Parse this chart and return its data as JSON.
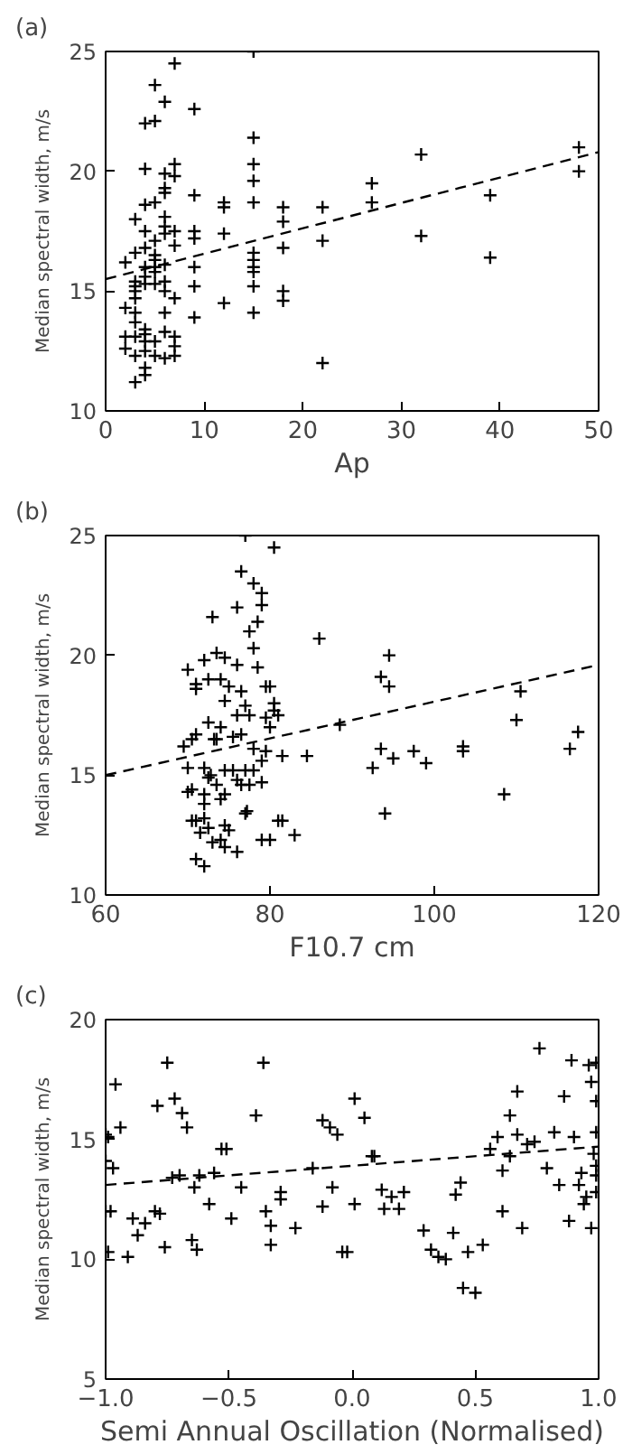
{
  "chart_data": [
    {
      "type": "scatter",
      "title": "(a)",
      "xlabel": "Ap",
      "ylabel": "Median spectral width, m/s",
      "xlim": [
        0,
        50
      ],
      "ylim": [
        10,
        25
      ],
      "xticks": [
        0,
        10,
        20,
        30,
        40,
        50
      ],
      "yticks": [
        10,
        15,
        20,
        25
      ],
      "series": [
        {
          "marker": "cross",
          "color": "#000000",
          "x": [
            2,
            2,
            2,
            2,
            3,
            3,
            3,
            3,
            3,
            3,
            3,
            3,
            3,
            3,
            3,
            4,
            4,
            4,
            4,
            4,
            4,
            4,
            4,
            4,
            4,
            4,
            4,
            4,
            4,
            5,
            5,
            5,
            5,
            5,
            5,
            5,
            5,
            5,
            5,
            5,
            6,
            6,
            6,
            6,
            6,
            6,
            6,
            6,
            6,
            6,
            6,
            6,
            6,
            7,
            7,
            7,
            7,
            7,
            7,
            7,
            7,
            7,
            9,
            9,
            9,
            9,
            9,
            9,
            9,
            12,
            12,
            12,
            12,
            15,
            15,
            15,
            15,
            15,
            15,
            15,
            15,
            15,
            15,
            15,
            18,
            18,
            18,
            18,
            18,
            22,
            22,
            22,
            27,
            27,
            32,
            32,
            39,
            39,
            48,
            48
          ],
          "values": [
            16.2,
            14.3,
            13.1,
            12.6,
            18.0,
            16.6,
            15.4,
            15.0,
            14.7,
            14.1,
            13.7,
            13.1,
            12.3,
            11.2,
            15.2,
            22.0,
            20.1,
            18.6,
            17.5,
            16.8,
            16.0,
            15.6,
            15.3,
            13.4,
            13.2,
            12.9,
            12.5,
            11.8,
            11.5,
            23.6,
            22.1,
            18.7,
            17.1,
            16.5,
            16.3,
            16.0,
            15.8,
            15.3,
            12.9,
            12.3,
            22.9,
            19.9,
            19.3,
            19.1,
            18.1,
            17.7,
            17.4,
            16.1,
            15.4,
            15.0,
            14.1,
            13.3,
            12.2,
            24.5,
            20.3,
            19.8,
            17.5,
            16.9,
            14.7,
            13.1,
            12.7,
            12.3,
            22.6,
            19.0,
            17.5,
            17.2,
            16.0,
            15.2,
            13.9,
            18.7,
            18.5,
            17.4,
            14.5,
            25.0,
            21.4,
            20.3,
            19.6,
            18.7,
            16.6,
            16.3,
            16.0,
            15.8,
            15.2,
            14.1,
            18.5,
            17.9,
            16.8,
            15.0,
            14.6,
            18.5,
            17.1,
            12.0,
            19.5,
            18.7,
            20.7,
            17.3,
            19.0,
            16.4,
            21.0,
            20.0
          ]
        },
        {
          "type": "line",
          "line_style": "dashed",
          "color": "#000000",
          "x": [
            0,
            50
          ],
          "values": [
            15.5,
            20.8
          ]
        }
      ]
    },
    {
      "type": "scatter",
      "title": "(b)",
      "xlabel": "F10.7 cm",
      "ylabel": "Median spectral width, m/s",
      "xlim": [
        60,
        120
      ],
      "ylim": [
        10,
        25
      ],
      "xticks": [
        60,
        80,
        100,
        120
      ],
      "yticks": [
        10,
        15,
        20,
        25
      ],
      "series": [
        {
          "marker": "cross",
          "color": "#000000",
          "x": [
            70,
            71,
            71,
            72,
            73,
            72.5,
            73.5,
            74,
            74.5,
            74.5,
            75,
            76,
            76.5,
            76,
            76.5,
            77,
            78,
            79,
            79,
            78.5,
            77.5,
            78,
            78.5,
            79.5,
            80,
            80.5,
            80.5,
            80.5,
            81,
            79.5,
            80,
            77,
            77.5,
            76,
            76.5,
            75.5,
            74,
            72.5,
            71,
            70.5,
            69.5,
            73.5,
            73.2,
            72,
            70,
            72.5,
            72.8,
            73.5,
            74.5,
            75.5,
            76,
            77,
            78,
            77.5,
            76.5,
            79,
            79,
            79.5,
            78,
            81.5,
            84.5,
            70,
            70.5,
            72,
            72,
            74,
            74.5,
            70.5,
            71,
            72,
            72.5,
            71.5,
            73,
            74,
            74.5,
            74.5,
            75,
            76,
            77,
            77.2,
            79,
            80,
            81,
            81.5,
            83,
            71,
            72,
            86,
            88.5,
            92.5,
            93.5,
            93.5,
            94,
            94.5,
            94.5,
            95,
            97.5,
            99,
            103.5,
            103.5,
            108.5,
            110,
            110.5,
            116.5,
            117.5
          ],
          "values": [
            19.4,
            18.6,
            18.8,
            19.8,
            21.6,
            19.0,
            20.1,
            19.0,
            19.9,
            18.1,
            18.7,
            22.0,
            23.5,
            19.6,
            18.5,
            25.0,
            23.0,
            22.6,
            22.1,
            21.4,
            21.0,
            20.3,
            19.5,
            18.7,
            18.7,
            24.5,
            18.0,
            17.7,
            17.5,
            17.4,
            17.0,
            17.9,
            17.5,
            17.5,
            16.7,
            16.6,
            17.0,
            17.2,
            16.7,
            16.5,
            16.2,
            16.5,
            16.5,
            15.3,
            15.3,
            14.9,
            15.0,
            14.6,
            15.2,
            15.2,
            14.8,
            15.2,
            15.2,
            14.6,
            14.6,
            15.6,
            14.7,
            16.0,
            16.1,
            15.8,
            15.8,
            14.3,
            14.4,
            14.2,
            13.8,
            14.0,
            14.2,
            13.1,
            13.1,
            13.2,
            12.8,
            12.6,
            12.2,
            12.3,
            12.0,
            12.9,
            12.7,
            11.8,
            13.4,
            13.5,
            12.3,
            12.3,
            13.1,
            13.1,
            12.5,
            11.5,
            11.2,
            20.7,
            17.1,
            15.3,
            19.1,
            16.1,
            13.4,
            20.0,
            18.7,
            15.7,
            16.0,
            15.5,
            16.2,
            16.0,
            14.2,
            17.3,
            18.5,
            16.1,
            16.8
          ]
        },
        {
          "type": "line",
          "line_style": "dashed",
          "color": "#000000",
          "x": [
            60,
            120
          ],
          "values": [
            15.0,
            19.6
          ]
        }
      ]
    },
    {
      "type": "scatter",
      "title": "(c)",
      "xlabel": "Semi Annual Oscillation (Normalised)",
      "ylabel": "Median spectral width, m/s",
      "xlim": [
        -1,
        1
      ],
      "ylim": [
        5,
        20
      ],
      "xticks": [
        {
          "value": -1,
          "label": "−1.0"
        },
        {
          "value": -0.5,
          "label": "−0.5"
        },
        {
          "value": 0,
          "label": "0.0"
        },
        {
          "value": 0.5,
          "label": "0.5"
        },
        {
          "value": 1,
          "label": "1.0"
        }
      ],
      "yticks": [
        5,
        10,
        15,
        20
      ],
      "series": [
        {
          "marker": "cross",
          "color": "#000000",
          "x": [
            -1.0,
            -0.99,
            -1.0,
            -0.97,
            -0.96,
            -0.94,
            -1.0,
            -0.98,
            -0.99,
            -0.91,
            -0.89,
            -0.87,
            -0.84,
            -0.8,
            -0.78,
            -0.79,
            -0.75,
            -0.72,
            -0.69,
            -0.67,
            -0.73,
            -0.7,
            -0.76,
            -0.64,
            -0.62,
            -0.65,
            -0.63,
            -0.58,
            -0.56,
            -0.53,
            -0.51,
            -0.49,
            -0.45,
            -0.39,
            -0.36,
            -0.35,
            -0.33,
            -0.33,
            -0.29,
            -0.29,
            -0.23,
            -0.16,
            -0.12,
            -0.12,
            -0.09,
            -0.08,
            -0.06,
            -0.04,
            -0.02,
            0.01,
            0.01,
            0.05,
            0.08,
            0.09,
            0.12,
            0.13,
            0.16,
            0.19,
            0.21,
            0.29,
            0.32,
            0.35,
            0.38,
            0.41,
            0.42,
            0.44,
            0.45,
            0.47,
            0.5,
            0.53,
            0.56,
            0.59,
            0.61,
            0.61,
            0.64,
            0.64,
            0.67,
            0.67,
            0.69,
            0.71,
            0.74,
            0.76,
            0.79,
            0.82,
            0.84,
            0.86,
            0.88,
            0.89,
            0.9,
            0.92,
            0.93,
            0.94,
            0.95,
            0.96,
            0.97,
            0.97,
            0.98,
            0.99,
            0.99,
            0.99,
            0.99,
            0.99,
            0.99
          ],
          "values": [
            15.2,
            15.1,
            14.1,
            13.8,
            17.3,
            15.5,
            12.0,
            12.0,
            10.3,
            10.1,
            11.7,
            11.0,
            11.5,
            12.0,
            11.9,
            16.4,
            18.2,
            16.7,
            16.1,
            15.5,
            13.4,
            13.5,
            10.5,
            13.0,
            13.5,
            10.8,
            10.4,
            12.3,
            13.6,
            14.6,
            14.6,
            11.7,
            13.0,
            16.0,
            18.2,
            12.0,
            11.4,
            10.6,
            12.5,
            12.8,
            11.3,
            13.8,
            15.8,
            12.2,
            15.5,
            13.0,
            15.2,
            10.3,
            10.3,
            16.7,
            12.3,
            15.9,
            14.3,
            14.3,
            12.9,
            12.1,
            12.6,
            12.1,
            12.8,
            11.2,
            10.4,
            10.1,
            10.0,
            11.1,
            12.7,
            13.2,
            8.8,
            10.3,
            8.6,
            10.6,
            14.6,
            15.1,
            13.7,
            12.0,
            16.0,
            14.3,
            17.0,
            15.2,
            11.3,
            14.8,
            14.9,
            18.8,
            13.8,
            15.3,
            13.1,
            16.8,
            11.6,
            18.3,
            15.1,
            13.1,
            13.6,
            12.3,
            12.6,
            18.1,
            17.4,
            11.3,
            14.4,
            18.2,
            16.6,
            15.3,
            13.9,
            13.5,
            12.8
          ]
        },
        {
          "type": "line",
          "line_style": "dashed",
          "color": "#000000",
          "x": [
            -1,
            1
          ],
          "values": [
            13.1,
            14.7
          ]
        }
      ]
    }
  ]
}
